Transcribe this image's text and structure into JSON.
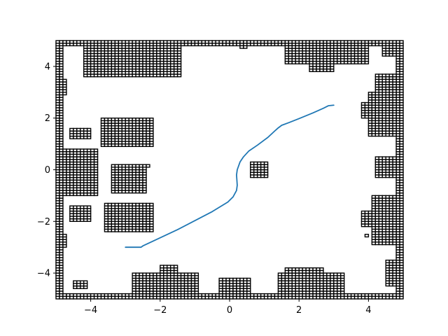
{
  "chart_data": {
    "type": "line",
    "title": "",
    "xlabel": "",
    "ylabel": "",
    "xlim": [
      -5,
      5
    ],
    "ylim": [
      -5,
      5
    ],
    "xticks": [
      -4,
      -2,
      0,
      2,
      4
    ],
    "yticks": [
      -4,
      -2,
      0,
      2,
      4
    ],
    "xtick_labels": [
      "−4",
      "−2",
      "0",
      "2",
      "4"
    ],
    "ytick_labels": [
      "−4",
      "−2",
      "0",
      "2",
      "4"
    ],
    "grid": false,
    "legend": "none",
    "cell_size": 0.1,
    "path_color": "#1f77b4",
    "obstacle_edge_color": "#000000",
    "obstacle_face_color": "#ffffff",
    "path": {
      "x": [
        -3.0,
        -2.55,
        -2.5,
        -1.5,
        -0.5,
        -0.05,
        0.1,
        0.2,
        0.22,
        0.2,
        0.22,
        0.3,
        0.4,
        0.55,
        0.8,
        1.1,
        1.3,
        1.4,
        1.5,
        1.7,
        2.0,
        2.4,
        2.7,
        2.85,
        3.0
      ],
      "y": [
        -3.0,
        -3.0,
        -2.95,
        -2.32,
        -1.62,
        -1.25,
        -1.05,
        -0.8,
        -0.6,
        -0.2,
        0.0,
        0.3,
        0.5,
        0.72,
        0.95,
        1.25,
        1.5,
        1.62,
        1.72,
        1.82,
        1.98,
        2.2,
        2.38,
        2.48,
        2.5
      ]
    },
    "obstacle_blocks": [
      {
        "x": [
          -5.0,
          -4.8
        ],
        "y": [
          -5.0,
          5.0
        ]
      },
      {
        "x": [
          4.8,
          5.0
        ],
        "y": [
          -5.0,
          5.0
        ]
      },
      {
        "x": [
          -5.0,
          5.0
        ],
        "y": [
          -5.0,
          -4.8
        ]
      },
      {
        "x": [
          -4.2,
          -1.4
        ],
        "y": [
          3.6,
          4.9
        ]
      },
      {
        "x": [
          -5.0,
          5.0
        ],
        "y": [
          4.8,
          5.0
        ]
      },
      {
        "x": [
          -0.5,
          0.7
        ],
        "y": [
          4.8,
          5.0
        ]
      },
      {
        "x": [
          0.3,
          0.5
        ],
        "y": [
          4.7,
          4.9
        ]
      },
      {
        "x": [
          1.6,
          4.0
        ],
        "y": [
          4.1,
          4.9
        ]
      },
      {
        "x": [
          2.3,
          3.0
        ],
        "y": [
          3.8,
          4.3
        ]
      },
      {
        "x": [
          4.4,
          5.0
        ],
        "y": [
          4.4,
          4.8
        ]
      },
      {
        "x": [
          -4.9,
          -4.7
        ],
        "y": [
          2.9,
          3.5
        ]
      },
      {
        "x": [
          4.0,
          4.9
        ],
        "y": [
          1.3,
          3.0
        ]
      },
      {
        "x": [
          4.2,
          4.9
        ],
        "y": [
          3.0,
          3.7
        ]
      },
      {
        "x": [
          3.8,
          4.1
        ],
        "y": [
          2.0,
          2.6
        ]
      },
      {
        "x": [
          -3.7,
          -2.2
        ],
        "y": [
          0.9,
          2.0
        ]
      },
      {
        "x": [
          -4.6,
          -4.0
        ],
        "y": [
          1.2,
          1.6
        ]
      },
      {
        "x": [
          -5.0,
          -3.8
        ],
        "y": [
          -1.0,
          0.8
        ]
      },
      {
        "x": [
          -3.4,
          -2.4
        ],
        "y": [
          -0.9,
          0.2
        ]
      },
      {
        "x": [
          -2.4,
          -2.3
        ],
        "y": [
          0.1,
          0.2
        ]
      },
      {
        "x": [
          0.6,
          1.1
        ],
        "y": [
          -0.3,
          0.3
        ]
      },
      {
        "x": [
          4.2,
          4.9
        ],
        "y": [
          -0.3,
          0.5
        ]
      },
      {
        "x": [
          -4.6,
          -4.0
        ],
        "y": [
          -2.0,
          -1.4
        ]
      },
      {
        "x": [
          -3.6,
          -2.2
        ],
        "y": [
          -2.4,
          -1.3
        ]
      },
      {
        "x": [
          3.8,
          4.9
        ],
        "y": [
          -2.2,
          -1.6
        ]
      },
      {
        "x": [
          4.1,
          4.9
        ],
        "y": [
          -2.9,
          -1.0
        ]
      },
      {
        "x": [
          3.9,
          4.0
        ],
        "y": [
          -2.6,
          -2.5
        ]
      },
      {
        "x": [
          -5.0,
          -4.7
        ],
        "y": [
          -3.0,
          -2.5
        ]
      },
      {
        "x": [
          -2.8,
          -0.9
        ],
        "y": [
          -4.9,
          -4.0
        ]
      },
      {
        "x": [
          -2.0,
          -1.5
        ],
        "y": [
          -4.1,
          -3.7
        ]
      },
      {
        "x": [
          -0.3,
          0.6
        ],
        "y": [
          -4.9,
          -4.2
        ]
      },
      {
        "x": [
          1.4,
          3.3
        ],
        "y": [
          -4.9,
          -4.0
        ]
      },
      {
        "x": [
          1.6,
          2.7
        ],
        "y": [
          -4.1,
          -3.8
        ]
      },
      {
        "x": [
          -4.5,
          -4.1
        ],
        "y": [
          -4.6,
          -4.3
        ]
      },
      {
        "x": [
          4.5,
          4.9
        ],
        "y": [
          -4.5,
          -3.5
        ]
      }
    ]
  }
}
